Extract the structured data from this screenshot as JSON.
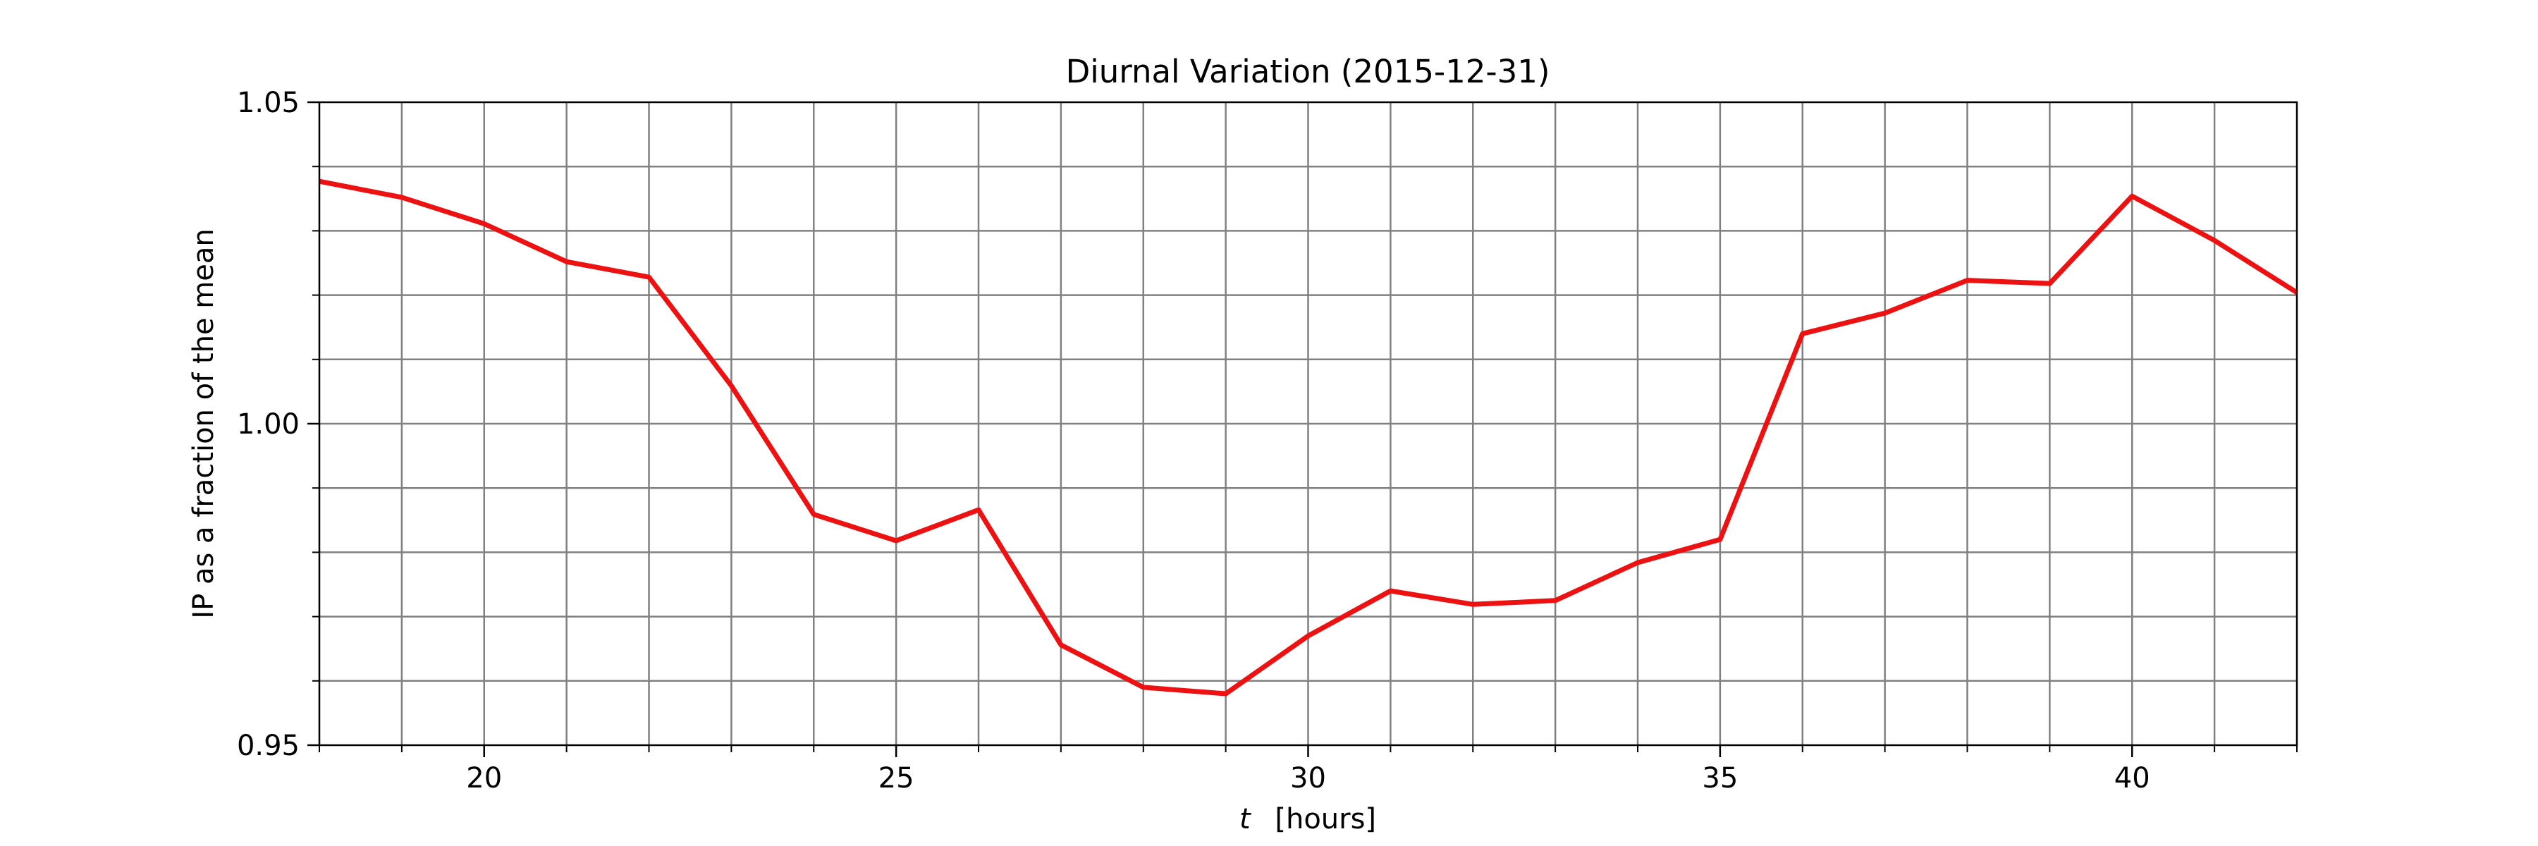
{
  "chart_data": {
    "type": "line",
    "title": "Diurnal Variation (2015-12-31)",
    "xlabel_var": "t",
    "xlabel_unit": "[hours]",
    "ylabel": "IP as a fraction of the mean",
    "xlim": [
      18,
      42
    ],
    "ylim": [
      0.95,
      1.05
    ],
    "xticks": [
      20,
      25,
      30,
      35,
      40
    ],
    "yticks": [
      0.95,
      1.0,
      1.05
    ],
    "ytick_labels": [
      "0.95",
      "1.00",
      "1.05"
    ],
    "x_minor_step": 1,
    "y_minor_step": 0.01,
    "grid": true,
    "line_color": "#ee1111",
    "grid_color": "#808080",
    "series": [
      {
        "x": [
          18,
          19,
          20,
          21,
          22,
          23,
          24,
          25,
          26,
          27,
          28,
          29,
          30,
          31,
          32,
          33,
          34,
          35,
          36,
          37,
          38,
          39,
          40,
          41,
          42
        ],
        "values": [
          1.0377,
          1.0352,
          1.0311,
          1.0252,
          1.0228,
          1.0059,
          0.9859,
          0.9818,
          0.9866,
          0.9656,
          0.959,
          0.958,
          0.967,
          0.974,
          0.9719,
          0.9725,
          0.9784,
          0.982,
          1.014,
          1.0172,
          1.0223,
          1.0218,
          1.0354,
          1.0285,
          1.0204
        ]
      }
    ]
  }
}
